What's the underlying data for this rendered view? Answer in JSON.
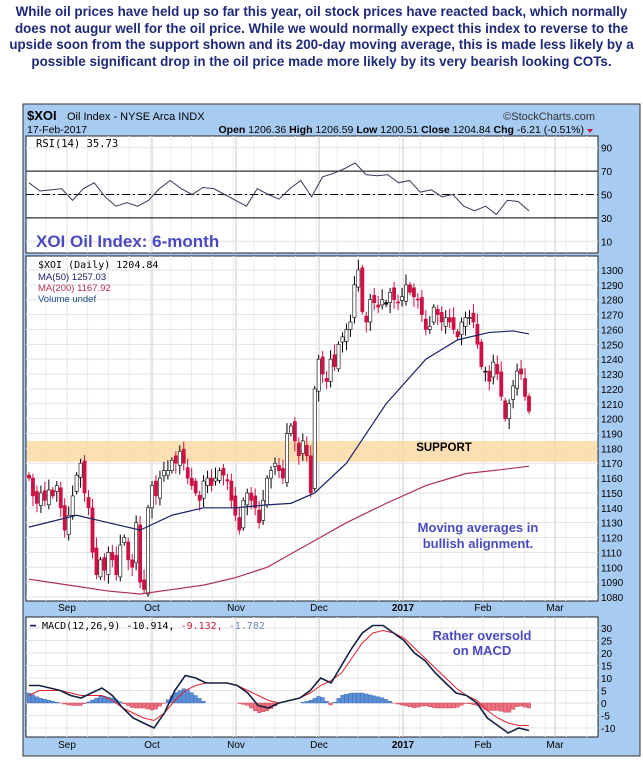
{
  "intro_text": "While oil prices have held up so far this year, oil stock prices have reacted back, which normally does not augur well for the oil price. While we would normally expect this index to reverse to the upside soon from the support shown and its 200-day moving average, this is made less likely by a possible significant drop in the oil price made more likely by its very bearish looking COTs.",
  "header": {
    "symbol": "$XOI",
    "name": "Oil Index - NYSE Arca INDX",
    "date": "17-Feb-2017",
    "source": "©StockCharts.com",
    "open_label": "Open",
    "open": "1206.36",
    "high_label": "High",
    "high": "1206.59",
    "low_label": "Low",
    "low": "1200.51",
    "close_label": "Close",
    "close": "1204.84",
    "chg_label": "Chg",
    "chg": "-6.21 (-0.51%)"
  },
  "colors": {
    "up": "#ffffff",
    "down": "#cc1144",
    "ma50": "#1a2266",
    "ma200": "#b03050",
    "support": "#fbd9a4",
    "frame": "#a8cbf2",
    "annot": "#4a4ac0"
  },
  "chart_data": [
    {
      "type": "line",
      "title": "RSI(14) 35.73",
      "ylim": [
        0,
        100
      ],
      "yticks": [
        90,
        70,
        50,
        30,
        10
      ],
      "levels": [
        70,
        50,
        30
      ],
      "values": [
        60,
        53,
        54,
        55,
        45,
        55,
        60,
        48,
        40,
        43,
        40,
        45,
        55,
        62,
        55,
        50,
        56,
        55,
        50,
        45,
        40,
        55,
        50,
        46,
        55,
        62,
        48,
        65,
        68,
        72,
        77,
        67,
        66,
        67,
        60,
        62,
        52,
        54,
        48,
        50,
        40,
        36,
        40,
        33,
        45,
        44,
        36
      ],
      "annotation": "XOI Oil Index: 6-month"
    },
    {
      "type": "candlestick",
      "legend": [
        "$XOI (Daily) 1204.84",
        "MA(50) 1257.03",
        "MA(200) 1167.92",
        "Volume undef"
      ],
      "ylim": [
        1075,
        1305
      ],
      "yticks": [
        1300,
        1290,
        1280,
        1270,
        1260,
        1250,
        1240,
        1230,
        1220,
        1210,
        1200,
        1190,
        1180,
        1170,
        1160,
        1150,
        1140,
        1130,
        1120,
        1110,
        1100,
        1090,
        1080
      ],
      "xticks": [
        "Sep",
        "Oct",
        "Nov",
        "Dec",
        "2017",
        "Feb",
        "Mar"
      ],
      "closes": [
        1160,
        1148,
        1143,
        1150,
        1145,
        1152,
        1148,
        1155,
        1140,
        1125,
        1135,
        1148,
        1162,
        1170,
        1150,
        1140,
        1110,
        1095,
        1105,
        1098,
        1110,
        1105,
        1095,
        1115,
        1120,
        1105,
        1100,
        1130,
        1090,
        1085,
        1140,
        1155,
        1148,
        1160,
        1165,
        1165,
        1172,
        1170,
        1178,
        1170,
        1160,
        1155,
        1150,
        1145,
        1158,
        1160,
        1155,
        1160,
        1165,
        1162,
        1158,
        1145,
        1135,
        1125,
        1145,
        1150,
        1145,
        1140,
        1130,
        1145,
        1160,
        1165,
        1170,
        1165,
        1160,
        1190,
        1195,
        1185,
        1175,
        1185,
        1175,
        1150,
        1220,
        1240,
        1230,
        1225,
        1240,
        1235,
        1250,
        1255,
        1260,
        1265,
        1290,
        1300,
        1272,
        1265,
        1280,
        1278,
        1275,
        1280,
        1278,
        1285,
        1280,
        1278,
        1282,
        1290,
        1285,
        1282,
        1280,
        1270,
        1260,
        1262,
        1275,
        1270,
        1265,
        1268,
        1265,
        1260,
        1255,
        1265,
        1268,
        1268,
        1265,
        1250,
        1235,
        1232,
        1225,
        1238,
        1230,
        1215,
        1200,
        1210,
        1222,
        1232,
        1230,
        1215,
        1205
      ],
      "ma50": [
        [
          0,
          1127
        ],
        [
          12,
          1135
        ],
        [
          20,
          1130
        ],
        [
          28,
          1125
        ],
        [
          36,
          1135
        ],
        [
          44,
          1140
        ],
        [
          52,
          1140
        ],
        [
          60,
          1142
        ],
        [
          66,
          1143
        ],
        [
          72,
          1150
        ],
        [
          80,
          1170
        ],
        [
          90,
          1210
        ],
        [
          100,
          1240
        ],
        [
          108,
          1253
        ],
        [
          116,
          1258
        ],
        [
          122,
          1259
        ],
        [
          126,
          1257
        ]
      ],
      "ma200": [
        [
          0,
          1092
        ],
        [
          10,
          1088
        ],
        [
          20,
          1084
        ],
        [
          28,
          1082
        ],
        [
          36,
          1085
        ],
        [
          44,
          1088
        ],
        [
          52,
          1093
        ],
        [
          60,
          1100
        ],
        [
          70,
          1115
        ],
        [
          80,
          1130
        ],
        [
          90,
          1143
        ],
        [
          100,
          1155
        ],
        [
          110,
          1163
        ],
        [
          120,
          1166
        ],
        [
          126,
          1168
        ]
      ],
      "support_band": [
        1171,
        1185
      ],
      "support_label": "SUPPORT",
      "annotation": [
        "Moving averages in",
        "bullish alignment."
      ]
    },
    {
      "type": "line",
      "title": "MACD(12,26,9)",
      "values_text": [
        "-10.914,",
        "-9.132,",
        "-1.782"
      ],
      "ylim": [
        -13,
        34
      ],
      "yticks": [
        30,
        25,
        20,
        15,
        10,
        5,
        0,
        -5,
        -10
      ],
      "xticks": [
        "Sep",
        "Oct",
        "Nov",
        "Dec",
        "2017",
        "Feb",
        "Mar"
      ],
      "macd": [
        7,
        7,
        6,
        5,
        3,
        2,
        4,
        6,
        3,
        -2,
        -6,
        -8,
        -10,
        -4,
        5,
        11,
        10,
        8,
        8,
        8,
        7,
        4,
        -1,
        -2,
        0,
        1,
        2,
        5,
        10,
        8,
        15,
        22,
        28,
        31,
        31,
        28,
        25,
        20,
        17,
        12,
        8,
        4,
        3,
        0,
        -6,
        -9,
        -12,
        -10,
        -11
      ],
      "signal": [
        3,
        5,
        5,
        5,
        4,
        3,
        3,
        3,
        1,
        -2,
        -4,
        -6,
        -7,
        -4,
        1,
        5,
        7,
        8,
        8,
        8,
        7,
        5,
        3,
        1,
        0,
        1,
        2,
        4,
        7,
        9,
        12,
        18,
        24,
        28,
        29,
        28,
        26,
        22,
        18,
        14,
        10,
        6,
        3,
        1,
        -3,
        -6,
        -8,
        -9,
        -9
      ],
      "annotation": [
        "Rather oversold",
        "on MACD"
      ]
    }
  ]
}
